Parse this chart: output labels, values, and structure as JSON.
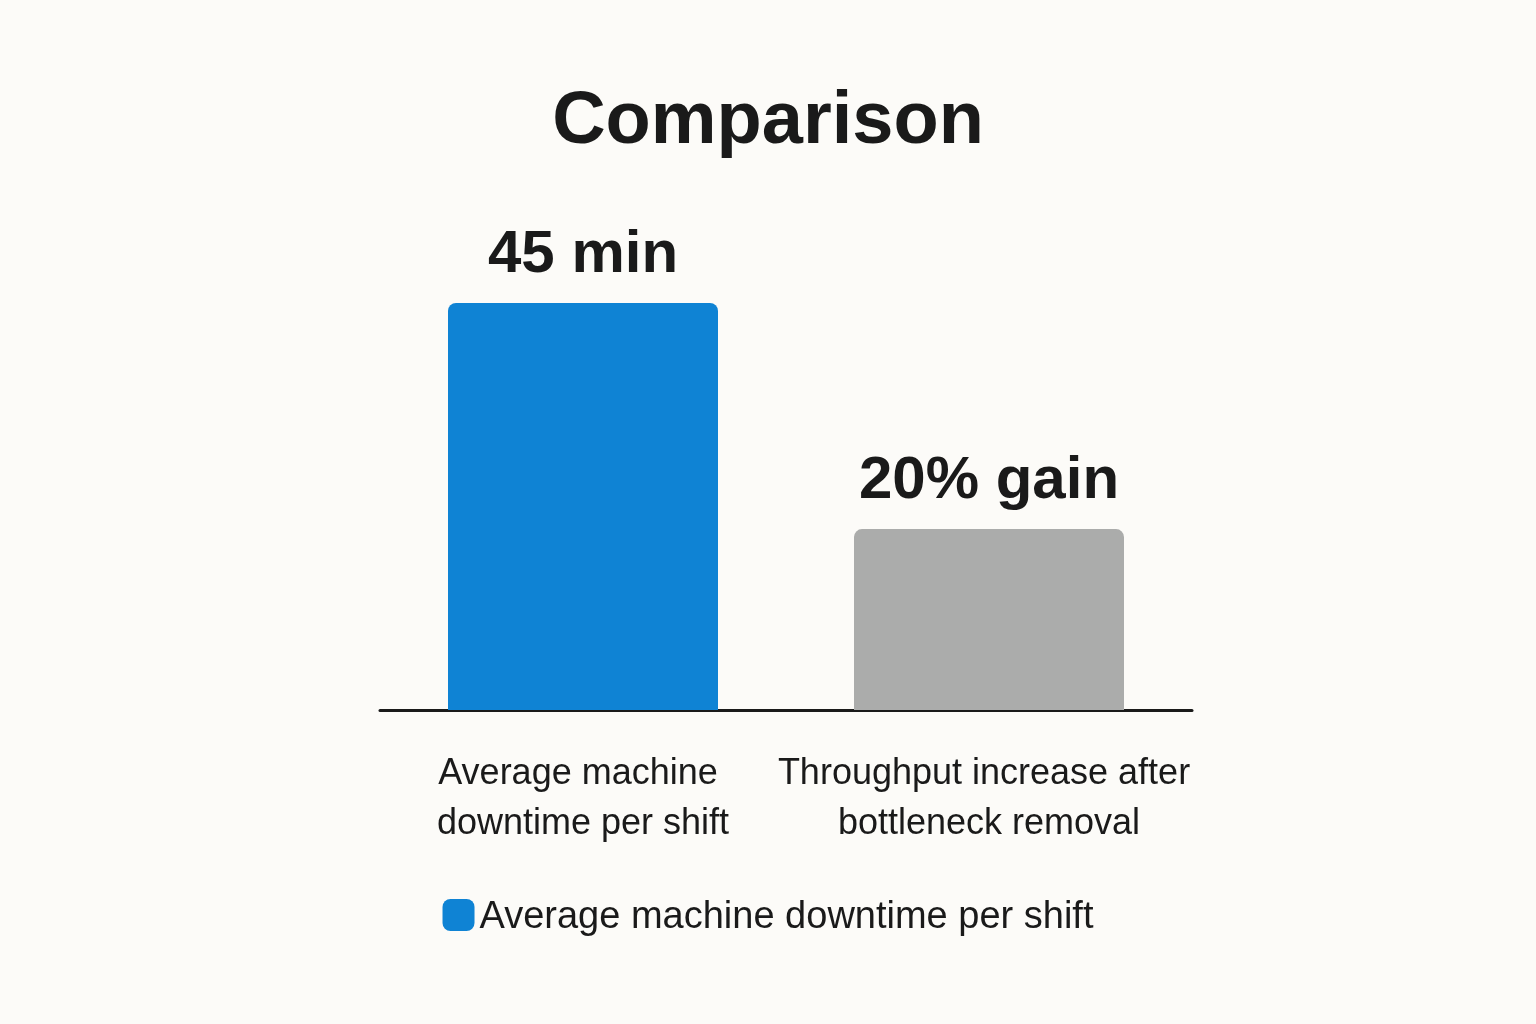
{
  "chart_data": {
    "type": "bar",
    "title": "Comparison",
    "tick_labels": "x",
    "categories": [
      "Average machine downtime per shift",
      "Throughput increase after bottleneck removal"
    ],
    "series": [
      {
        "name": "Average machine downtime per shift",
        "colors": [
          "#0f83d4",
          "#abacab"
        ],
        "values": [
          45,
          20
        ],
        "value_labels": [
          "45 min",
          "20% gain"
        ]
      }
    ],
    "legend": "bottom"
  }
}
